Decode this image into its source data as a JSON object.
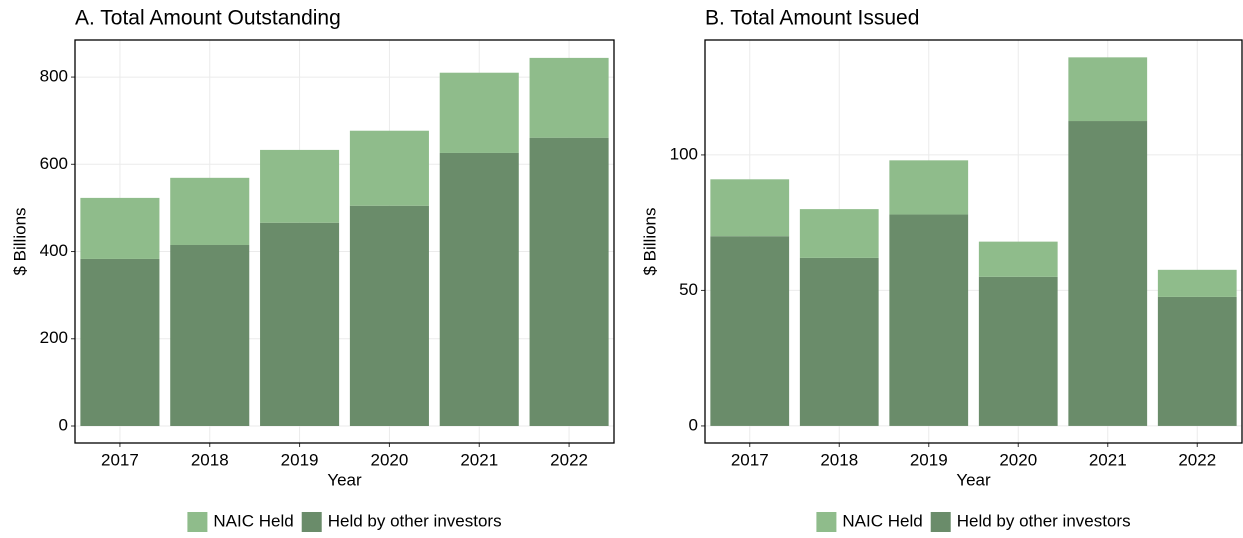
{
  "chart_data": [
    {
      "type": "bar",
      "stacked": true,
      "grid": true,
      "title": "A. Total Amount Outstanding",
      "x_label": "Year",
      "y_label": "$ Billions",
      "categories": [
        "2017",
        "2018",
        "2019",
        "2020",
        "2021",
        "2022"
      ],
      "series": [
        {
          "name": "NAIC Held",
          "color": "#8fbc8b",
          "values": [
            140,
            154,
            167,
            172,
            184,
            183
          ]
        },
        {
          "name": "Held by other investors",
          "color": "#6a8c6a",
          "values": [
            383,
            415,
            466,
            505,
            626,
            661
          ]
        }
      ],
      "ylim": [
        -39,
        885
      ],
      "yticks": [
        0,
        200,
        400,
        600,
        800
      ]
    },
    {
      "type": "bar",
      "stacked": true,
      "grid": true,
      "title": "B. Total Amount Issued",
      "x_label": "Year",
      "y_label": "$ Billions",
      "categories": [
        "2017",
        "2018",
        "2019",
        "2020",
        "2021",
        "2022"
      ],
      "series": [
        {
          "name": "NAIC Held",
          "color": "#8fbc8b",
          "values": [
            21,
            18,
            20,
            13,
            23.5,
            10
          ]
        },
        {
          "name": "Held by other investors",
          "color": "#6a8c6a",
          "values": [
            70,
            62,
            78,
            55,
            112.5,
            47.6
          ]
        }
      ],
      "ylim": [
        -6.3,
        142.4
      ],
      "yticks": [
        0,
        50,
        100
      ]
    }
  ]
}
